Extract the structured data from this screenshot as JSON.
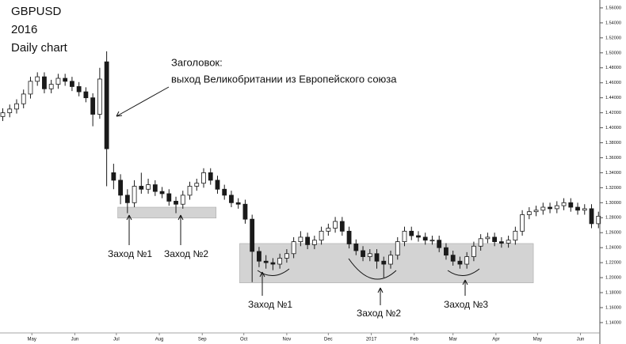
{
  "chart_data": {
    "type": "candlestick",
    "title_lines": [
      "GBPUSD",
      "2016",
      "Daily chart"
    ],
    "annotations": {
      "headline": [
        "Заголовок:",
        "выход Великобритании из Европейского союза"
      ],
      "entries": [
        "Заход №1",
        "Заход №2",
        "Заход №1",
        "Заход №2",
        "Заход №3"
      ]
    },
    "x": [
      -5,
      0,
      5,
      10,
      15,
      20,
      25,
      30,
      35,
      40,
      45,
      50,
      55,
      60,
      65,
      70,
      75,
      80,
      85,
      90,
      95,
      100,
      105,
      110,
      115,
      120,
      125,
      130,
      135,
      140,
      145,
      150,
      155,
      160,
      165,
      170,
      175,
      180,
      185,
      190,
      195,
      200,
      205,
      210,
      215,
      220,
      225,
      230,
      235,
      240,
      245,
      250,
      255,
      260,
      265,
      270,
      275,
      280,
      285,
      290,
      295,
      300,
      305,
      310,
      315,
      320,
      325,
      330,
      335,
      340,
      345,
      350,
      355,
      360,
      365,
      370,
      375,
      380,
      385,
      390,
      395,
      400,
      405,
      410,
      415,
      420,
      425
    ],
    "open": [
      1.415,
      1.42,
      1.425,
      1.432,
      1.445,
      1.462,
      1.468,
      1.452,
      1.458,
      1.466,
      1.462,
      1.455,
      1.448,
      1.44,
      1.418,
      1.488,
      1.34,
      1.33,
      1.31,
      1.3,
      1.322,
      1.318,
      1.324,
      1.315,
      1.312,
      1.302,
      1.298,
      1.31,
      1.322,
      1.326,
      1.34,
      1.33,
      1.318,
      1.31,
      1.3,
      1.298,
      1.278,
      1.235,
      1.222,
      1.22,
      1.218,
      1.226,
      1.232,
      1.248,
      1.254,
      1.244,
      1.25,
      1.262,
      1.266,
      1.275,
      1.262,
      1.245,
      1.236,
      1.228,
      1.232,
      1.222,
      1.218,
      1.23,
      1.248,
      1.262,
      1.256,
      1.254,
      1.25,
      1.25,
      1.24,
      1.23,
      1.222,
      1.218,
      1.228,
      1.242,
      1.252,
      1.254,
      1.248,
      1.246,
      1.25,
      1.262,
      1.284,
      1.288,
      1.29,
      1.294,
      1.292,
      1.296,
      1.3,
      1.294,
      1.29,
      1.292,
      1.272
    ],
    "high": [
      1.426,
      1.431,
      1.438,
      1.451,
      1.468,
      1.474,
      1.474,
      1.464,
      1.472,
      1.472,
      1.468,
      1.461,
      1.454,
      1.446,
      1.48,
      1.502,
      1.352,
      1.338,
      1.318,
      1.33,
      1.34,
      1.332,
      1.33,
      1.321,
      1.318,
      1.308,
      1.316,
      1.328,
      1.332,
      1.346,
      1.346,
      1.336,
      1.324,
      1.316,
      1.306,
      1.304,
      1.284,
      1.241,
      1.23,
      1.226,
      1.232,
      1.238,
      1.254,
      1.262,
      1.26,
      1.256,
      1.268,
      1.272,
      1.281,
      1.281,
      1.268,
      1.251,
      1.242,
      1.238,
      1.238,
      1.228,
      1.236,
      1.254,
      1.268,
      1.268,
      1.262,
      1.26,
      1.256,
      1.256,
      1.246,
      1.236,
      1.228,
      1.234,
      1.248,
      1.258,
      1.26,
      1.26,
      1.254,
      1.256,
      1.268,
      1.29,
      1.294,
      1.296,
      1.3,
      1.3,
      1.302,
      1.306,
      1.306,
      1.3,
      1.298,
      1.298,
      1.288
    ],
    "low": [
      1.409,
      1.414,
      1.419,
      1.426,
      1.439,
      1.456,
      1.446,
      1.446,
      1.452,
      1.456,
      1.449,
      1.442,
      1.434,
      1.402,
      1.412,
      1.322,
      1.318,
      1.298,
      1.286,
      1.294,
      1.312,
      1.312,
      1.309,
      1.306,
      1.296,
      1.286,
      1.292,
      1.304,
      1.316,
      1.32,
      1.324,
      1.312,
      1.304,
      1.294,
      1.292,
      1.272,
      1.194,
      1.214,
      1.212,
      1.21,
      1.212,
      1.22,
      1.226,
      1.242,
      1.238,
      1.238,
      1.244,
      1.256,
      1.26,
      1.256,
      1.239,
      1.23,
      1.222,
      1.222,
      1.212,
      1.2,
      1.212,
      1.224,
      1.242,
      1.25,
      1.248,
      1.244,
      1.244,
      1.234,
      1.224,
      1.216,
      1.212,
      1.212,
      1.222,
      1.236,
      1.246,
      1.242,
      1.24,
      1.24,
      1.244,
      1.256,
      1.278,
      1.282,
      1.284,
      1.286,
      1.286,
      1.29,
      1.288,
      1.284,
      1.284,
      1.266,
      1.266
    ],
    "close": [
      1.42,
      1.425,
      1.432,
      1.445,
      1.462,
      1.468,
      1.452,
      1.458,
      1.466,
      1.462,
      1.455,
      1.448,
      1.44,
      1.418,
      1.465,
      1.372,
      1.33,
      1.31,
      1.3,
      1.322,
      1.318,
      1.324,
      1.315,
      1.312,
      1.302,
      1.298,
      1.31,
      1.322,
      1.326,
      1.34,
      1.33,
      1.318,
      1.31,
      1.3,
      1.298,
      1.278,
      1.235,
      1.222,
      1.22,
      1.218,
      1.226,
      1.232,
      1.248,
      1.254,
      1.244,
      1.25,
      1.262,
      1.266,
      1.275,
      1.262,
      1.245,
      1.236,
      1.228,
      1.232,
      1.222,
      1.218,
      1.23,
      1.248,
      1.262,
      1.256,
      1.254,
      1.25,
      1.25,
      1.24,
      1.23,
      1.222,
      1.218,
      1.228,
      1.242,
      1.252,
      1.254,
      1.248,
      1.246,
      1.25,
      1.262,
      1.284,
      1.288,
      1.29,
      1.294,
      1.292,
      1.296,
      1.3,
      1.294,
      1.29,
      1.292,
      1.272,
      1.282
    ],
    "up_color": "#ffffff",
    "down_color": "#1a1a1a",
    "zones": [
      {
        "x": [
          78,
          149
        ],
        "y": [
          1.2795,
          1.294
        ]
      },
      {
        "x": [
          166,
          378
        ],
        "y": [
          1.193,
          1.2455
        ]
      }
    ],
    "zone_color": "#d3d3d3",
    "xlim": [
      -7,
      426
    ],
    "xticks": [
      {
        "value": 16,
        "label": "May"
      },
      {
        "value": 47,
        "label": "Jun"
      },
      {
        "value": 77,
        "label": "Jul"
      },
      {
        "value": 108,
        "label": "Aug"
      },
      {
        "value": 139,
        "label": "Sep"
      },
      {
        "value": 169,
        "label": "Oct"
      },
      {
        "value": 200,
        "label": "Nov"
      },
      {
        "value": 230,
        "label": "Dec"
      },
      {
        "value": 261,
        "label": "2017"
      },
      {
        "value": 292,
        "label": "Feb"
      },
      {
        "value": 320,
        "label": "Mar"
      },
      {
        "value": 351,
        "label": "Apr"
      },
      {
        "value": 381,
        "label": "May"
      },
      {
        "value": 412,
        "label": "Jun"
      }
    ],
    "ylim": [
      1.122,
      1.5705
    ],
    "yticks": [
      {
        "value": 1.14,
        "label": "1.14000"
      },
      {
        "value": 1.16,
        "label": "1.16000"
      },
      {
        "value": 1.18,
        "label": "1.18000"
      },
      {
        "value": 1.2,
        "label": "1.20000"
      },
      {
        "value": 1.22,
        "label": "1.22000"
      },
      {
        "value": 1.24,
        "label": "1.24000"
      },
      {
        "value": 1.26,
        "label": "1.26000"
      },
      {
        "value": 1.28,
        "label": "1.28000"
      },
      {
        "value": 1.3,
        "label": "1.30000"
      },
      {
        "value": 1.32,
        "label": "1.32000"
      },
      {
        "value": 1.34,
        "label": "1.34000"
      },
      {
        "value": 1.36,
        "label": "1.36000"
      },
      {
        "value": 1.38,
        "label": "1.38000"
      },
      {
        "value": 1.4,
        "label": "1.40000"
      },
      {
        "value": 1.42,
        "label": "1.42000"
      },
      {
        "value": 1.44,
        "label": "1.44000"
      },
      {
        "value": 1.46,
        "label": "1.46000"
      },
      {
        "value": 1.48,
        "label": "1.48000"
      },
      {
        "value": 1.5,
        "label": "1.50000"
      },
      {
        "value": 1.52,
        "label": "1.52000"
      },
      {
        "value": 1.54,
        "label": "1.54000"
      },
      {
        "value": 1.56,
        "label": "1.56000"
      }
    ]
  }
}
